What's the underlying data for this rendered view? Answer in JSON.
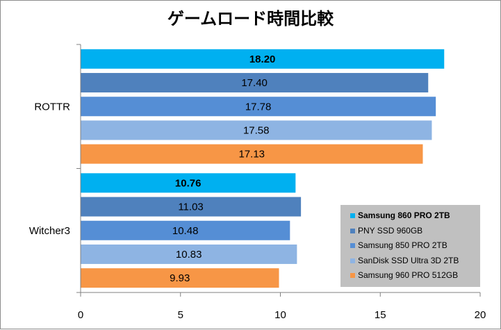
{
  "chart_data": {
    "type": "bar",
    "orientation": "horizontal",
    "title": "ゲームロード時間比較",
    "categories": [
      "ROTTR",
      "Witcher3"
    ],
    "series": [
      {
        "name": "Samsung 860 PRO 2TB",
        "values": [
          18.2,
          10.76
        ],
        "labels": [
          "18.20",
          "10.76"
        ],
        "color": "#00b0f0",
        "bold": true
      },
      {
        "name": "PNY SSD 960GB",
        "values": [
          17.4,
          11.03
        ],
        "labels": [
          "17.40",
          "11.03"
        ],
        "color": "#4f81bd",
        "bold": false
      },
      {
        "name": "Samsung 850 PRO 2TB",
        "values": [
          17.78,
          10.48
        ],
        "labels": [
          "17.78",
          "10.48"
        ],
        "color": "#558ed5",
        "bold": false
      },
      {
        "name": "SanDisk SSD Ultra 3D 2TB",
        "values": [
          17.58,
          10.83
        ],
        "labels": [
          "17.58",
          "10.83"
        ],
        "color": "#8eb4e3",
        "bold": false
      },
      {
        "name": "Samsung 960 PRO 512GB",
        "values": [
          17.13,
          9.93
        ],
        "labels": [
          "17.13",
          "9.93"
        ],
        "color": "#f79646",
        "bold": false
      }
    ],
    "xlim": [
      0,
      20
    ],
    "xticks": [
      "0",
      "5",
      "10",
      "15",
      "20"
    ],
    "grid": false,
    "legend_position": "bottom-right"
  }
}
